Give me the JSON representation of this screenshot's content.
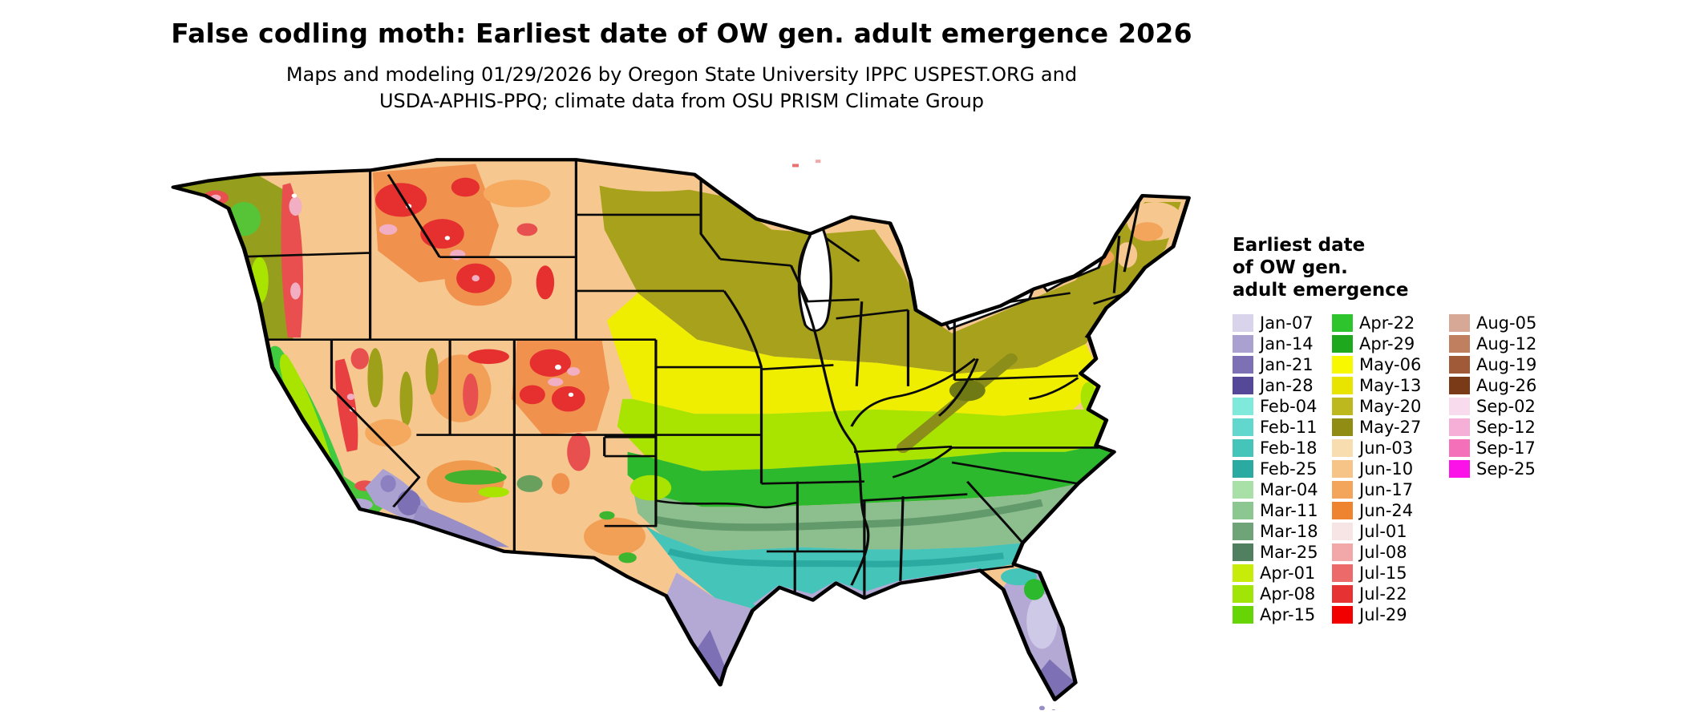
{
  "title": "False codling moth: Earliest date of OW gen. adult emergence 2026",
  "subtitle": {
    "line1": "Maps and modeling 01/29/2026 by Oregon State University IPPC USPEST.ORG and",
    "line2": "USDA-APHIS-PPQ; climate data from OSU PRISM Climate Group"
  },
  "legend": {
    "title_line1": "Earliest date",
    "title_line2": "of OW gen.",
    "title_line3": "adult emergence",
    "columns": [
      {
        "entries": [
          {
            "label": "Jan-07",
            "color": "#d9d3ec"
          },
          {
            "label": "Jan-14",
            "color": "#aba1d0"
          },
          {
            "label": "Jan-21",
            "color": "#7d70b4"
          },
          {
            "label": "Jan-28",
            "color": "#554898"
          },
          {
            "label": "Feb-04",
            "color": "#7fe9dc"
          },
          {
            "label": "Feb-11",
            "color": "#62d7cd"
          },
          {
            "label": "Feb-18",
            "color": "#45c4ba"
          },
          {
            "label": "Feb-25",
            "color": "#2aaaa0"
          },
          {
            "label": "Mar-04",
            "color": "#a8e0a8"
          },
          {
            "label": "Mar-11",
            "color": "#8cc690"
          },
          {
            "label": "Mar-18",
            "color": "#6fa478"
          },
          {
            "label": "Mar-25",
            "color": "#518060"
          },
          {
            "label": "Apr-01",
            "color": "#c8ec0a"
          },
          {
            "label": "Apr-08",
            "color": "#a0e408"
          },
          {
            "label": "Apr-15",
            "color": "#66d405"
          }
        ]
      },
      {
        "entries": [
          {
            "label": "Apr-22",
            "color": "#2dc42d"
          },
          {
            "label": "Apr-29",
            "color": "#1ea81e"
          },
          {
            "label": "May-06",
            "color": "#f8f800"
          },
          {
            "label": "May-13",
            "color": "#e8e400"
          },
          {
            "label": "May-20",
            "color": "#bcb81e"
          },
          {
            "label": "May-27",
            "color": "#918c14"
          },
          {
            "label": "Jun-03",
            "color": "#f8ddb0"
          },
          {
            "label": "Jun-10",
            "color": "#f7c488"
          },
          {
            "label": "Jun-17",
            "color": "#f3a55c"
          },
          {
            "label": "Jun-24",
            "color": "#ee8430"
          },
          {
            "label": "Jul-01",
            "color": "#f7e4e4"
          },
          {
            "label": "Jul-08",
            "color": "#f2a8a8"
          },
          {
            "label": "Jul-15",
            "color": "#ec6a6a"
          },
          {
            "label": "Jul-22",
            "color": "#e63232"
          },
          {
            "label": "Jul-29",
            "color": "#f20000"
          }
        ]
      },
      {
        "entries": [
          {
            "label": "Aug-05",
            "color": "#d8a896"
          },
          {
            "label": "Aug-12",
            "color": "#c08060"
          },
          {
            "label": "Aug-19",
            "color": "#a05a38"
          },
          {
            "label": "Aug-26",
            "color": "#7a3a18"
          },
          {
            "label": "Sep-02",
            "color": "#f8dcee"
          },
          {
            "label": "Sep-12",
            "color": "#f6b0d8"
          },
          {
            "label": "Sep-17",
            "color": "#f470b8"
          },
          {
            "label": "Sep-25",
            "color": "#fb12e8"
          }
        ]
      }
    ]
  }
}
